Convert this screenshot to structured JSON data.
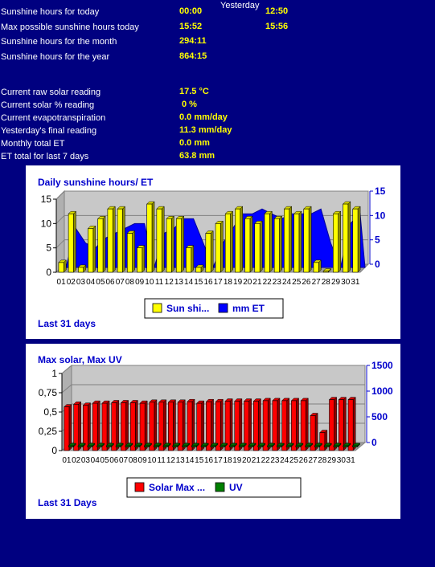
{
  "stats": {
    "yesterday_label": "Yesterday",
    "rows": [
      {
        "label": "Sunshine hours for today",
        "value": "00:00",
        "yesterday": "12:50"
      },
      {
        "label": "Max possible sunshine hours today",
        "value": "15:52",
        "yesterday": "15:56"
      },
      {
        "label": "Sunshine hours for the month",
        "value": "294:11",
        "yesterday": ""
      },
      {
        "label": "Sunshine hours for the year",
        "value": "864:15",
        "yesterday": ""
      }
    ]
  },
  "readings": [
    {
      "label": "Current raw solar reading",
      "value": "17.5 °C"
    },
    {
      "label": "Current solar % reading",
      "value": "0 %"
    },
    {
      "label": "Current evapotranspiration",
      "value": "0.0 mm/day"
    },
    {
      "label": "Yesterday's final reading",
      "value": "11.3 mm/day"
    },
    {
      "label": "Monthly total ET",
      "value": "0.0 mm"
    },
    {
      "label": "ET total for last 7 days",
      "value": "63.8 mm"
    }
  ],
  "chart_data": [
    {
      "type": "bar",
      "title": "Daily sunshine hours/ ET",
      "footer": "Last 31 days",
      "categories": [
        "01",
        "02",
        "03",
        "04",
        "05",
        "06",
        "07",
        "08",
        "09",
        "10",
        "11",
        "12",
        "13",
        "14",
        "15",
        "16",
        "17",
        "18",
        "19",
        "20",
        "21",
        "22",
        "23",
        "24",
        "25",
        "26",
        "27",
        "28",
        "29",
        "30",
        "31"
      ],
      "left_axis": {
        "ticks": [
          "0",
          "5",
          "10",
          "15"
        ],
        "min": 0,
        "max": 15,
        "color": "#000000"
      },
      "right_axis": {
        "ticks": [
          "0",
          "5",
          "10",
          "15"
        ],
        "min": 0,
        "max": 15,
        "color": "#0000cc"
      },
      "series": [
        {
          "name": "Sun shi...",
          "kind": "bar",
          "color": "#ffff00",
          "axis": "left",
          "values": [
            2,
            12,
            1,
            9,
            11,
            13,
            13,
            8,
            5,
            14,
            13,
            11,
            11,
            5,
            1,
            8,
            10,
            12,
            13,
            11,
            10,
            12,
            11,
            13,
            12,
            13,
            2,
            0,
            12,
            14,
            13
          ]
        },
        {
          "name": "mm ET",
          "kind": "area",
          "color": "#0000ff",
          "axis": "right",
          "values": [
            0,
            8,
            5,
            4,
            6,
            7,
            8,
            9,
            9,
            0,
            7,
            8,
            10,
            10,
            5,
            0,
            5,
            8,
            11,
            11,
            12,
            11,
            10,
            11,
            11,
            11,
            12,
            5,
            0,
            9,
            11
          ]
        }
      ]
    },
    {
      "type": "bar",
      "title": "Max solar, Max UV",
      "footer": "Last 31 Days",
      "categories": [
        "01",
        "02",
        "03",
        "04",
        "05",
        "06",
        "07",
        "08",
        "09",
        "10",
        "11",
        "12",
        "13",
        "14",
        "15",
        "16",
        "17",
        "18",
        "19",
        "20",
        "21",
        "22",
        "23",
        "24",
        "25",
        "26",
        "27",
        "28",
        "29",
        "30",
        "31"
      ],
      "left_axis": {
        "ticks": [
          "0",
          "0,25",
          "0,5",
          "0,75",
          "1"
        ],
        "min": 0,
        "max": 1,
        "color": "#000000"
      },
      "right_axis": {
        "ticks": [
          "0",
          "500",
          "1000",
          "1500"
        ],
        "min": 0,
        "max": 1500,
        "color": "#0000cc"
      },
      "series": [
        {
          "name": "Solar Max ...",
          "kind": "bar",
          "color": "#ff0000",
          "axis": "right",
          "values": [
            850,
            900,
            880,
            920,
            920,
            930,
            930,
            930,
            920,
            940,
            940,
            940,
            940,
            950,
            920,
            950,
            950,
            960,
            960,
            960,
            960,
            970,
            970,
            970,
            970,
            970,
            680,
            350,
            990,
            990,
            990
          ]
        },
        {
          "name": "UV",
          "kind": "bar",
          "color": "#008000",
          "axis": "left",
          "values": [
            0,
            0,
            0,
            0,
            0,
            0,
            0,
            0,
            0,
            0,
            0,
            0,
            0,
            0,
            0,
            0,
            0,
            0,
            0,
            0,
            0,
            0,
            0,
            0,
            0,
            0,
            0,
            0,
            0,
            0,
            0
          ]
        }
      ]
    }
  ]
}
